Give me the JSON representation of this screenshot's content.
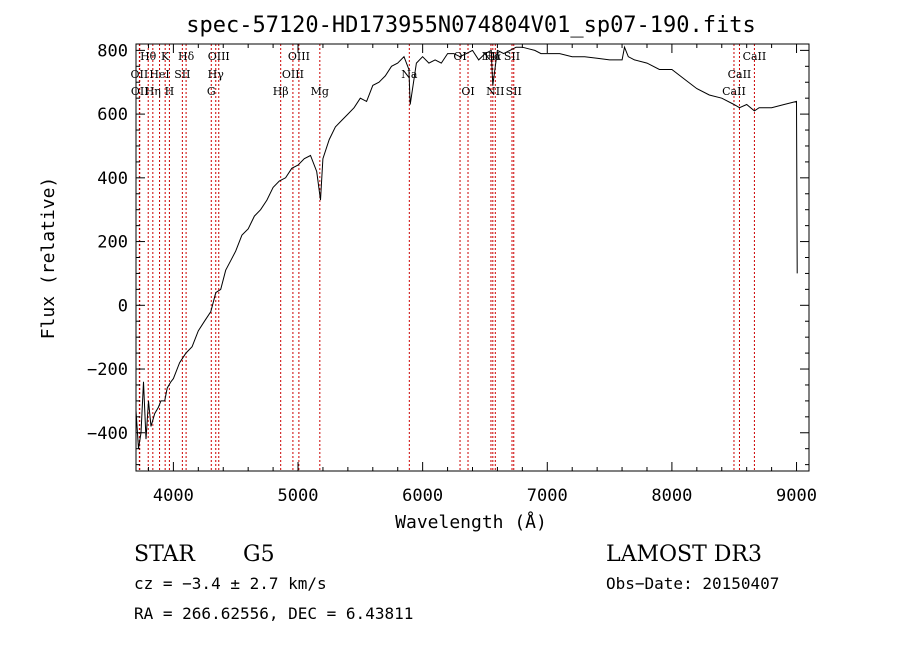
{
  "chart_data": {
    "type": "line",
    "title": "spec-57120-HD173955N074804V01_sp07-190.fits",
    "xlabel": "Wavelength (Å)",
    "ylabel": "Flux (relative)",
    "xlim": [
      3700,
      9100
    ],
    "ylim": [
      -520,
      820
    ],
    "x_ticks": [
      4000,
      5000,
      6000,
      7000,
      8000,
      9000
    ],
    "y_ticks": [
      -400,
      -200,
      0,
      200,
      400,
      600,
      800
    ],
    "grid": false,
    "series": [
      {
        "x": [
          3700,
          3720,
          3740,
          3760,
          3780,
          3800,
          3820,
          3850,
          3880,
          3900,
          3930,
          3950,
          3980,
          4000,
          4050,
          4100,
          4150,
          4200,
          4250,
          4300,
          4340,
          4380,
          4420,
          4460,
          4500,
          4550,
          4600,
          4650,
          4700,
          4750,
          4800,
          4850,
          4900,
          4950,
          5000,
          5050,
          5100,
          5150,
          5180,
          5200,
          5250,
          5300,
          5350,
          5400,
          5450,
          5500,
          5550,
          5600,
          5650,
          5700,
          5750,
          5800,
          5850,
          5890,
          5900,
          5950,
          6000,
          6050,
          6100,
          6150,
          6200,
          6250,
          6300,
          6350,
          6400,
          6450,
          6500,
          6550,
          6563,
          6600,
          6650,
          6700,
          6750,
          6800,
          6850,
          6900,
          6950,
          7000,
          7100,
          7200,
          7300,
          7400,
          7500,
          7600,
          7620,
          7650,
          7700,
          7800,
          7900,
          8000,
          8100,
          8200,
          8300,
          8400,
          8498,
          8542,
          8600,
          8662,
          8700,
          8800,
          8900,
          9000,
          9005
        ],
        "y": [
          -330,
          -450,
          -400,
          -240,
          -420,
          -300,
          -380,
          -340,
          -320,
          -300,
          -300,
          -260,
          -240,
          -230,
          -180,
          -150,
          -130,
          -80,
          -50,
          -20,
          40,
          50,
          110,
          140,
          170,
          220,
          240,
          280,
          300,
          330,
          370,
          390,
          400,
          430,
          440,
          460,
          470,
          420,
          330,
          460,
          520,
          560,
          580,
          600,
          620,
          650,
          640,
          690,
          700,
          720,
          750,
          760,
          780,
          740,
          630,
          760,
          780,
          760,
          770,
          760,
          790,
          790,
          780,
          790,
          800,
          770,
          790,
          800,
          690,
          800,
          790,
          800,
          810,
          810,
          805,
          800,
          790,
          790,
          790,
          780,
          780,
          775,
          770,
          770,
          810,
          780,
          770,
          760,
          740,
          740,
          710,
          680,
          660,
          650,
          630,
          620,
          630,
          610,
          620,
          620,
          630,
          640,
          100
        ]
      }
    ],
    "spectral_lines": [
      {
        "x": 3727,
        "label": "OII",
        "row": 2
      },
      {
        "x": 3730,
        "label": "OII",
        "row": 3
      },
      {
        "x": 3798,
        "label": "Hθ",
        "row": 1
      },
      {
        "x": 3835,
        "label": "Hη",
        "row": 3
      },
      {
        "x": 3889,
        "label": "HeI",
        "row": 2
      },
      {
        "x": 3934,
        "label": "K",
        "row": 1
      },
      {
        "x": 3968,
        "label": "H",
        "row": 3
      },
      {
        "x": 4072,
        "label": "SII",
        "row": 2
      },
      {
        "x": 4102,
        "label": "Hδ",
        "row": 1
      },
      {
        "x": 4304,
        "label": "G",
        "row": 3
      },
      {
        "x": 4340,
        "label": "Hγ",
        "row": 2
      },
      {
        "x": 4364,
        "label": "OIII",
        "row": 1
      },
      {
        "x": 4861,
        "label": "Hβ",
        "row": 3
      },
      {
        "x": 4959,
        "label": "OIII",
        "row": 2
      },
      {
        "x": 5007,
        "label": "OIII",
        "row": 1
      },
      {
        "x": 5175,
        "label": "Mg",
        "row": 3
      },
      {
        "x": 5893,
        "label": "Na",
        "row": 2
      },
      {
        "x": 6300,
        "label": "OI",
        "row": 1
      },
      {
        "x": 6364,
        "label": "OI",
        "row": 3
      },
      {
        "x": 6548,
        "label": "NII",
        "row": 1
      },
      {
        "x": 6563,
        "label": "Hα",
        "row": 1
      },
      {
        "x": 6583,
        "label": "NII",
        "row": 3
      },
      {
        "x": 6717,
        "label": "SII",
        "row": 1
      },
      {
        "x": 6731,
        "label": "SII",
        "row": 3
      },
      {
        "x": 8498,
        "label": "CaII",
        "row": 3
      },
      {
        "x": 8542,
        "label": "CaII",
        "row": 2
      },
      {
        "x": 8662,
        "label": "CaII",
        "row": 1
      }
    ],
    "colors": {
      "spectrum": "#000000",
      "spectral_line": "#cc0000"
    }
  },
  "info": {
    "object_class": "STAR",
    "subclass": "G5",
    "survey": "LAMOST DR3",
    "cz": "cz = −3.4 ± 2.7 km/s",
    "obs_date": "Obs−Date: 20150407",
    "coords": "RA = 266.62556, DEC =   6.43811"
  }
}
